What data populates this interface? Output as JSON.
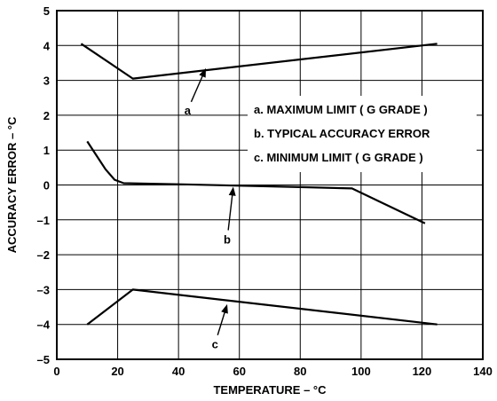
{
  "chart_data": {
    "type": "line",
    "title": "",
    "xlabel": "TEMPERATURE – °C",
    "ylabel": "ACCURACY ERROR – °C",
    "xlim": [
      0,
      140
    ],
    "ylim": [
      -5,
      5
    ],
    "x_ticks": [
      0,
      20,
      40,
      60,
      80,
      100,
      120,
      140
    ],
    "y_ticks": [
      5,
      4,
      3,
      2,
      1,
      0,
      -1,
      -2,
      -3,
      -4,
      -5
    ],
    "grid": true,
    "legend_position": "center-right",
    "series": [
      {
        "name": "a. MAXIMUM LIMIT ( G GRADE )",
        "label": "a",
        "x": [
          8,
          25,
          125
        ],
        "y": [
          4.05,
          3.05,
          4.05
        ]
      },
      {
        "name": "b. TYPICAL ACCURACY ERROR",
        "label": "b",
        "x": [
          10,
          13,
          16,
          19,
          22,
          40,
          60,
          80,
          97,
          121
        ],
        "y": [
          1.25,
          0.85,
          0.45,
          0.15,
          0.05,
          0.02,
          -0.02,
          -0.06,
          -0.1,
          -1.1
        ]
      },
      {
        "name": "c. MINIMUM LIMIT ( G GRADE )",
        "label": "c",
        "x": [
          10,
          25,
          125
        ],
        "y": [
          -4.0,
          -3.0,
          -4.0
        ]
      }
    ],
    "annotations": [
      {
        "text": "a",
        "arrow_to": [
          49,
          3.35
        ],
        "text_at": [
          43,
          2.15
        ]
      },
      {
        "text": "b",
        "arrow_to": [
          58,
          -0.05
        ],
        "text_at": [
          56,
          -1.55
        ]
      },
      {
        "text": "c",
        "arrow_to": [
          56,
          -3.42
        ],
        "text_at": [
          52,
          -4.55
        ]
      }
    ],
    "colors": {
      "line": "#000000",
      "grid": "#000000",
      "background": "#ffffff"
    }
  }
}
